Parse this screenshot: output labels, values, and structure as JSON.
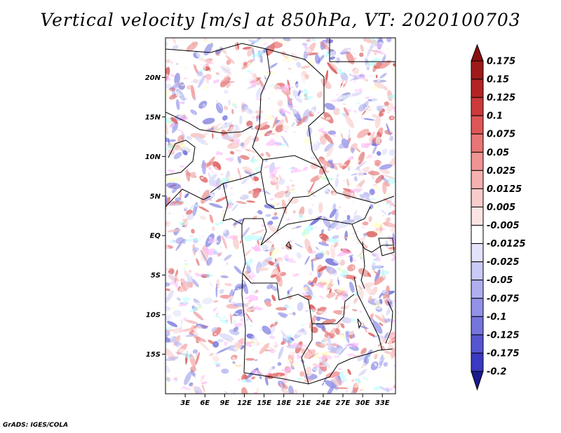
{
  "title": "Vertical velocity [m/s] at 850hPa, VT: 2020100703",
  "credit": "GrADS: IGES/COLA",
  "map": {
    "lon_range": [
      0,
      35
    ],
    "lat_range": [
      -20,
      25
    ],
    "lat_ticks": [
      {
        "lat": 20,
        "label": "20N"
      },
      {
        "lat": 15,
        "label": "15N"
      },
      {
        "lat": 10,
        "label": "10N"
      },
      {
        "lat": 5,
        "label": "5N"
      },
      {
        "lat": 0,
        "label": "EQ"
      },
      {
        "lat": -5,
        "label": "5S"
      },
      {
        "lat": -10,
        "label": "10S"
      },
      {
        "lat": -15,
        "label": "15S"
      }
    ],
    "lon_ticks": [
      {
        "lon": 3,
        "label": "3E"
      },
      {
        "lon": 6,
        "label": "6E"
      },
      {
        "lon": 9,
        "label": "9E"
      },
      {
        "lon": 12,
        "label": "12E"
      },
      {
        "lon": 15,
        "label": "15E"
      },
      {
        "lon": 18,
        "label": "18E"
      },
      {
        "lon": 21,
        "label": "21E"
      },
      {
        "lon": 24,
        "label": "24E"
      },
      {
        "lon": 27,
        "label": "27E"
      },
      {
        "lon": 30,
        "label": "30E"
      },
      {
        "lon": 33,
        "label": "33E"
      }
    ]
  },
  "colorbar": {
    "levels": [
      {
        "label": "0.175",
        "color": "#9e1a1a"
      },
      {
        "label": "0.15",
        "color": "#b52424"
      },
      {
        "label": "0.125",
        "color": "#cc3a3a"
      },
      {
        "label": "0.1",
        "color": "#de5757"
      },
      {
        "label": "0.075",
        "color": "#e97676"
      },
      {
        "label": "0.05",
        "color": "#f09393"
      },
      {
        "label": "0.025",
        "color": "#f5b1b1"
      },
      {
        "label": "0.0125",
        "color": "#f9cccc"
      },
      {
        "label": "0.005",
        "color": "#fce4e4"
      },
      {
        "label": "-0.005",
        "color": "#ffffff"
      },
      {
        "label": "-0.0125",
        "color": "#e3e3fb"
      },
      {
        "label": "-0.025",
        "color": "#cacaf6"
      },
      {
        "label": "-0.05",
        "color": "#afaff0"
      },
      {
        "label": "-0.075",
        "color": "#9292e8"
      },
      {
        "label": "-0.1",
        "color": "#7575de"
      },
      {
        "label": "-0.125",
        "color": "#5656d2"
      },
      {
        "label": "-0.175",
        "color": "#3a3ac2"
      },
      {
        "label": "-0.2",
        "color": "#2222a8"
      }
    ],
    "top_color": "#8a1010",
    "bottom_color": "#1a1a8e"
  }
}
